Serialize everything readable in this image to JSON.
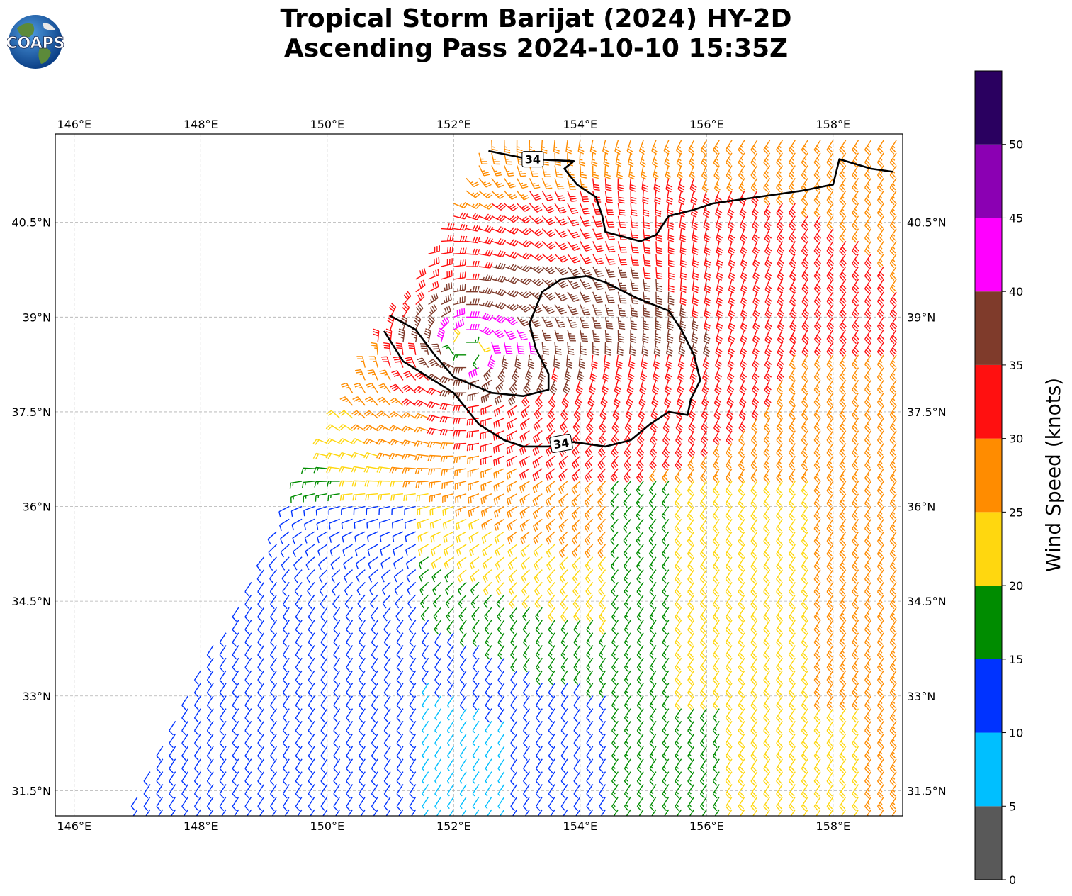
{
  "title": {
    "line1": "Tropical Storm Barijat (2024) HY-2D",
    "line2": "Ascending Pass 2024-10-10 15:35Z"
  },
  "logo": {
    "text": "COAPS",
    "icon": "globe-logo-icon"
  },
  "map": {
    "lon_ticks": [
      "146°E",
      "148°E",
      "150°E",
      "152°E",
      "154°E",
      "156°E",
      "158°E"
    ],
    "lat_ticks": [
      "40.5°N",
      "39°N",
      "37.5°N",
      "36°N",
      "34.5°N",
      "33°N",
      "31.5°N"
    ],
    "lon_range": [
      145.7,
      159.1
    ],
    "lat_range": [
      31.1,
      41.9
    ],
    "storm_center": {
      "lon": 152.2,
      "lat": 38.5
    },
    "contour_label": "34",
    "contour_labels": [
      "34",
      "34"
    ]
  },
  "colorbar": {
    "label": "Wind Speed (knots)",
    "ticks": [
      "0",
      "5",
      "10",
      "15",
      "20",
      "25",
      "30",
      "35",
      "40",
      "45",
      "50"
    ],
    "bins": [
      {
        "from": 0,
        "to": 5,
        "color": "#595959"
      },
      {
        "from": 5,
        "to": 10,
        "color": "#00bfff"
      },
      {
        "from": 10,
        "to": 15,
        "color": "#0033ff"
      },
      {
        "from": 15,
        "to": 20,
        "color": "#008c00"
      },
      {
        "from": 20,
        "to": 25,
        "color": "#ffd70f"
      },
      {
        "from": 25,
        "to": 30,
        "color": "#ff8c00"
      },
      {
        "from": 30,
        "to": 35,
        "color": "#ff1010"
      },
      {
        "from": 35,
        "to": 40,
        "color": "#7f3b2b"
      },
      {
        "from": 40,
        "to": 45,
        "color": "#ff00ff"
      },
      {
        "from": 45,
        "to": 50,
        "color": "#8b00b3"
      },
      {
        "from": 50,
        "to": 55,
        "color": "#2a0060"
      }
    ]
  }
}
